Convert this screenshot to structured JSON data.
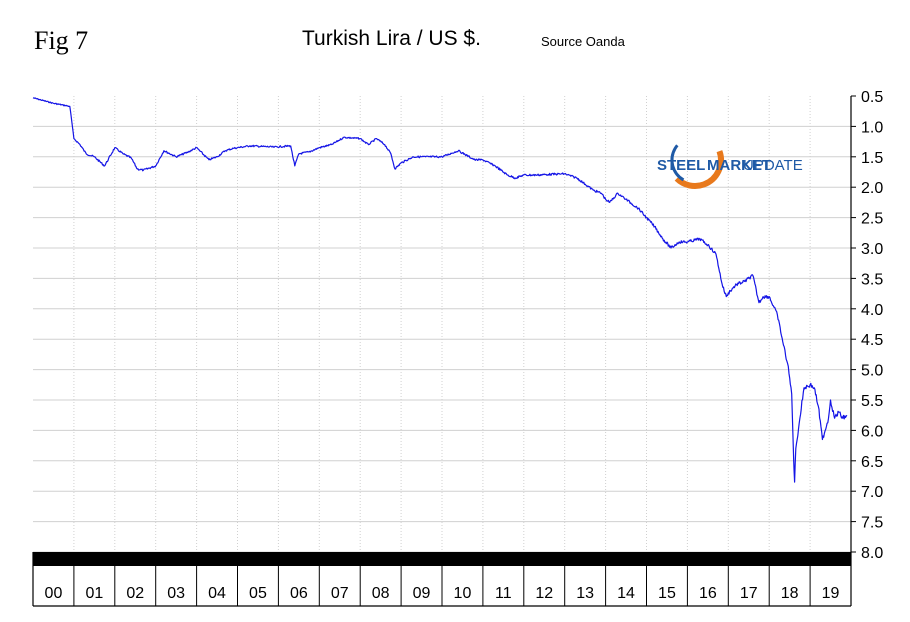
{
  "figure_label": "Fig 7",
  "title": "Turkish Lira / US $.",
  "source": "Source Oanda",
  "colors": {
    "line": "#1414e6",
    "axis": "#000000",
    "grid": "#d0d0d0",
    "logo_orange": "#e8791c",
    "logo_blue": "#1f5aa6"
  },
  "logo": {
    "word1": "STEEL",
    "word2": "MARKET",
    "word3": "UPDATE"
  },
  "chart_data": {
    "type": "line",
    "title": "Turkish Lira / US $.",
    "xlabel": "",
    "ylabel": "",
    "y_inverted": true,
    "ylim": [
      0.5,
      8.0
    ],
    "yticks": [
      0.5,
      1.0,
      1.5,
      2.0,
      2.5,
      3.0,
      3.5,
      4.0,
      4.5,
      5.0,
      5.5,
      6.0,
      6.5,
      7.0,
      7.5,
      8.0
    ],
    "ytick_labels": [
      "0.5",
      "1.0",
      "1.5",
      "2.0",
      "2.5",
      "3.0",
      "3.5",
      "4.0",
      "4.5",
      "5.0",
      "5.5",
      "6.0",
      "6.5",
      "7.0",
      "7.5",
      "8.0"
    ],
    "xlim": [
      2000.0,
      2020.0
    ],
    "xticks": [
      2000,
      2001,
      2002,
      2003,
      2004,
      2005,
      2006,
      2007,
      2008,
      2009,
      2010,
      2011,
      2012,
      2013,
      2014,
      2015,
      2016,
      2017,
      2018,
      2019
    ],
    "xtick_labels": [
      "00",
      "01",
      "02",
      "03",
      "04",
      "05",
      "06",
      "07",
      "08",
      "09",
      "10",
      "11",
      "12",
      "13",
      "14",
      "15",
      "16",
      "17",
      "18",
      "19"
    ],
    "grid": true,
    "series": [
      {
        "name": "",
        "x": [
          2000.0,
          2000.5,
          2000.9,
          2001.0,
          2001.15,
          2001.3,
          2001.5,
          2001.75,
          2002.0,
          2002.2,
          2002.4,
          2002.55,
          2002.7,
          2003.0,
          2003.2,
          2003.5,
          2003.8,
          2004.0,
          2004.3,
          2004.5,
          2004.7,
          2004.9,
          2005.0,
          2005.3,
          2005.6,
          2005.9,
          2006.3,
          2006.4,
          2006.5,
          2006.75,
          2007.0,
          2007.3,
          2007.6,
          2008.0,
          2008.2,
          2008.4,
          2008.6,
          2008.75,
          2008.85,
          2009.0,
          2009.3,
          2009.6,
          2010.0,
          2010.4,
          2010.8,
          2011.0,
          2011.3,
          2011.6,
          2011.8,
          2012.0,
          2012.3,
          2012.6,
          2013.0,
          2013.3,
          2013.5,
          2013.7,
          2013.9,
          2014.0,
          2014.1,
          2014.3,
          2014.5,
          2014.8,
          2015.0,
          2015.2,
          2015.4,
          2015.6,
          2015.8,
          2016.0,
          2016.3,
          2016.5,
          2016.7,
          2016.85,
          2016.95,
          2017.05,
          2017.2,
          2017.4,
          2017.6,
          2017.75,
          2017.85,
          2018.0,
          2018.2,
          2018.35,
          2018.45,
          2018.55,
          2018.6,
          2018.62,
          2018.65,
          2018.75,
          2018.85,
          2019.0,
          2019.1,
          2019.2,
          2019.3,
          2019.45,
          2019.5,
          2019.6,
          2019.7,
          2019.8,
          2019.9
        ],
        "values": [
          0.53,
          0.62,
          0.67,
          1.2,
          1.3,
          1.45,
          1.5,
          1.65,
          1.35,
          1.45,
          1.52,
          1.7,
          1.72,
          1.65,
          1.4,
          1.5,
          1.42,
          1.35,
          1.55,
          1.5,
          1.4,
          1.36,
          1.35,
          1.32,
          1.33,
          1.34,
          1.32,
          1.65,
          1.45,
          1.42,
          1.35,
          1.3,
          1.18,
          1.2,
          1.3,
          1.2,
          1.3,
          1.45,
          1.7,
          1.6,
          1.5,
          1.5,
          1.5,
          1.4,
          1.55,
          1.55,
          1.65,
          1.8,
          1.85,
          1.8,
          1.8,
          1.79,
          1.78,
          1.85,
          1.95,
          2.05,
          2.1,
          2.2,
          2.25,
          2.1,
          2.2,
          2.35,
          2.5,
          2.65,
          2.85,
          3.0,
          2.9,
          2.9,
          2.85,
          2.95,
          3.1,
          3.6,
          3.8,
          3.7,
          3.6,
          3.55,
          3.45,
          3.9,
          3.8,
          3.8,
          4.1,
          4.6,
          4.9,
          5.4,
          6.5,
          6.85,
          6.3,
          5.8,
          5.3,
          5.25,
          5.3,
          5.6,
          6.15,
          5.8,
          5.5,
          5.8,
          5.7,
          5.8,
          5.75
        ]
      }
    ]
  }
}
